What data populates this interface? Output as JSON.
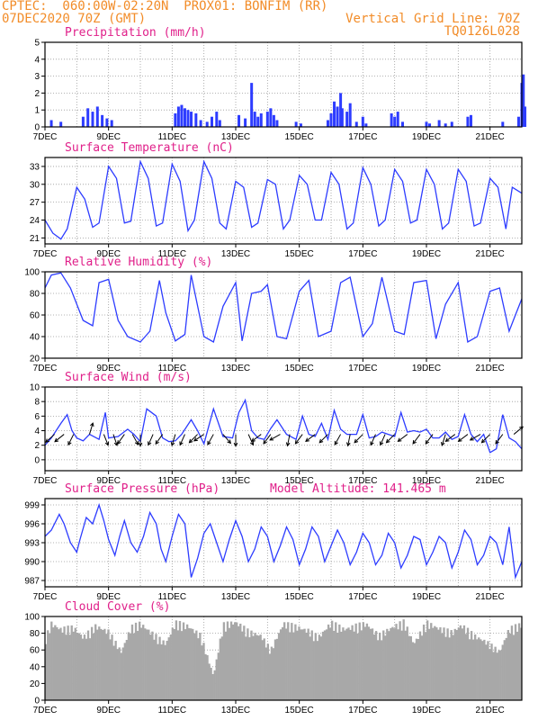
{
  "header": {
    "line1_left": "CPTEC:  060:00W-02:20N  PROX01: BONFIM (RR)",
    "line2_left": "07DEC2020 70Z (GMT)",
    "line2_right": "Vertical Grid Line: 70Z",
    "line3_right": "TQ0126L028"
  },
  "colors": {
    "header": "#f28c28",
    "title": "#e0208a",
    "line": "#2d3cff",
    "bar": "#2d3cff",
    "cloud": "#a8a8a8",
    "arrow": "#000000"
  },
  "x_labels": [
    "7DEC",
    "9DEC",
    "11DEC",
    "13DEC",
    "15DEC",
    "17DEC",
    "19DEC",
    "21DEC"
  ],
  "chart_data": [
    {
      "type": "bar",
      "title": "Precipitation (mm/h)",
      "ylim": [
        0,
        5
      ],
      "yticks": [
        0,
        1,
        2,
        3,
        4,
        5
      ],
      "x": [
        0.2,
        0.5,
        1.2,
        1.35,
        1.5,
        1.65,
        1.8,
        1.95,
        2.1,
        4.1,
        4.2,
        4.3,
        4.4,
        4.5,
        4.6,
        4.75,
        4.9,
        5.1,
        5.25,
        5.4,
        5.5,
        6.1,
        6.3,
        6.5,
        6.6,
        6.7,
        6.8,
        7.0,
        7.1,
        7.2,
        7.3,
        7.9,
        8.05,
        8.9,
        9.0,
        9.1,
        9.2,
        9.3,
        9.35,
        9.5,
        9.6,
        9.8,
        10.0,
        10.1,
        10.9,
        11.0,
        11.1,
        11.25,
        12.0,
        12.1,
        12.4,
        12.6,
        12.8,
        13.3,
        13.4,
        14.4,
        14.9,
        15.0,
        15.05,
        15.1
      ],
      "values": [
        0.4,
        0.3,
        0.6,
        1.1,
        0.9,
        1.2,
        0.7,
        0.5,
        0.4,
        0.8,
        1.2,
        1.3,
        1.1,
        1.0,
        0.9,
        0.8,
        0.4,
        0.3,
        0.6,
        0.9,
        0.4,
        0.7,
        0.5,
        2.6,
        0.9,
        0.6,
        0.8,
        0.9,
        1.1,
        0.7,
        0.4,
        0.3,
        0.2,
        0.4,
        0.8,
        1.5,
        1.2,
        2.0,
        1.1,
        0.9,
        1.4,
        0.3,
        0.6,
        0.2,
        0.8,
        0.6,
        0.9,
        0.3,
        0.3,
        0.2,
        0.4,
        0.2,
        0.3,
        0.6,
        0.7,
        0.3,
        0.6,
        2.6,
        3.1,
        1.2
      ]
    },
    {
      "type": "line",
      "title": "Surface Temperature (nC)",
      "ylim": [
        20,
        34.5
      ],
      "yticks": [
        21,
        24,
        27,
        30,
        33
      ],
      "x": [
        0,
        0.25,
        0.5,
        0.7,
        1.0,
        1.25,
        1.5,
        1.7,
        2.0,
        2.25,
        2.5,
        2.7,
        3.0,
        3.25,
        3.5,
        3.7,
        4.0,
        4.25,
        4.5,
        4.7,
        5.0,
        5.25,
        5.5,
        5.7,
        6.0,
        6.25,
        6.5,
        6.7,
        7.0,
        7.25,
        7.5,
        7.7,
        8.0,
        8.25,
        8.5,
        8.7,
        9.0,
        9.25,
        9.5,
        9.7,
        10.0,
        10.25,
        10.5,
        10.7,
        11.0,
        11.25,
        11.5,
        11.7,
        12.0,
        12.25,
        12.5,
        12.7,
        13.0,
        13.25,
        13.5,
        13.7,
        14.0,
        14.25,
        14.5,
        14.7,
        15.0
      ],
      "values": [
        24,
        21.8,
        20.8,
        22.5,
        29.5,
        27.5,
        22.8,
        23.5,
        33,
        31,
        23.5,
        23.8,
        33.8,
        31,
        23,
        23.5,
        33.4,
        30.5,
        22.2,
        24,
        33.8,
        31,
        23.5,
        22.5,
        30.5,
        29.5,
        22.8,
        23.5,
        30.8,
        30,
        22.5,
        24,
        31.5,
        30,
        24,
        24,
        32,
        30,
        22.5,
        23.5,
        32.8,
        30,
        23,
        24,
        32.5,
        30.5,
        23.5,
        24,
        32.5,
        30,
        22.5,
        23.5,
        32.5,
        30.5,
        23,
        23.5,
        31,
        29.5,
        22.5,
        29.5,
        28.5
      ]
    },
    {
      "type": "line",
      "title": "Relative Humidity (%)",
      "ylim": [
        20,
        100
      ],
      "yticks": [
        20,
        40,
        60,
        80,
        100
      ],
      "x": [
        0,
        0.2,
        0.5,
        0.8,
        1.2,
        1.5,
        1.7,
        2.0,
        2.3,
        2.6,
        3.0,
        3.3,
        3.6,
        3.8,
        4.1,
        4.4,
        4.6,
        5.0,
        5.3,
        5.6,
        6.0,
        6.2,
        6.5,
        6.8,
        7.0,
        7.3,
        7.6,
        8.0,
        8.3,
        8.6,
        9.0,
        9.3,
        9.6,
        10.0,
        10.3,
        10.6,
        11.0,
        11.3,
        11.6,
        12.0,
        12.3,
        12.6,
        13.0,
        13.3,
        13.6,
        14.0,
        14.3,
        14.6,
        14.8,
        15.0
      ],
      "values": [
        85,
        97,
        99,
        85,
        55,
        50,
        90,
        93,
        55,
        40,
        35,
        45,
        92,
        62,
        36,
        42,
        97,
        40,
        35,
        68,
        90,
        36,
        80,
        82,
        88,
        40,
        38,
        82,
        92,
        40,
        45,
        90,
        95,
        40,
        52,
        95,
        45,
        42,
        90,
        92,
        38,
        70,
        90,
        35,
        40,
        82,
        85,
        45,
        60,
        75
      ]
    },
    {
      "type": "line",
      "title": "Surface Wind (m/s)",
      "ylim": [
        -1.5,
        10
      ],
      "yticks": [
        0,
        2,
        4,
        6,
        8,
        10
      ],
      "x": [
        0,
        0.2,
        0.5,
        0.7,
        0.85,
        1.0,
        1.2,
        1.4,
        1.7,
        1.9,
        2.0,
        2.3,
        2.6,
        2.8,
        3.0,
        3.2,
        3.5,
        3.7,
        3.9,
        4.1,
        4.3,
        4.6,
        4.8,
        5.0,
        5.3,
        5.6,
        5.9,
        6.1,
        6.3,
        6.5,
        6.7,
        6.9,
        7.1,
        7.3,
        7.6,
        7.9,
        8.1,
        8.3,
        8.5,
        8.7,
        8.9,
        9.1,
        9.3,
        9.5,
        9.8,
        10.0,
        10.2,
        10.4,
        10.6,
        10.8,
        11.0,
        11.2,
        11.4,
        11.6,
        11.8,
        12.0,
        12.2,
        12.4,
        12.6,
        12.8,
        13.0,
        13.2,
        13.4,
        13.6,
        13.8,
        14.0,
        14.2,
        14.4,
        14.6,
        14.8,
        15.0
      ],
      "values": [
        2,
        3,
        5,
        6.2,
        4,
        3,
        2.6,
        3.5,
        2.8,
        6.5,
        3,
        3.2,
        4.2,
        3.5,
        2.5,
        7,
        6,
        3,
        2.5,
        2.6,
        3.5,
        5.5,
        4,
        2.2,
        7,
        3.2,
        3,
        6.5,
        8.2,
        4,
        3,
        2.8,
        4.3,
        5.5,
        3.5,
        2.8,
        6,
        3.5,
        3.2,
        5,
        2.8,
        6.8,
        4.2,
        3.5,
        3.5,
        6.2,
        3,
        3.2,
        3.8,
        3.5,
        3.2,
        6.5,
        3.8,
        4,
        3.8,
        4.2,
        3,
        3,
        3.8,
        2.8,
        3.2,
        6.2,
        3.5,
        2.5,
        3.5,
        1,
        1.5,
        6.2,
        3,
        2.5,
        1.5
      ],
      "arrows": {
        "x": [
          0.3,
          0.6,
          0.9,
          1.4,
          1.85,
          2.15,
          2.5,
          2.75,
          3.0,
          3.4,
          3.7,
          4.1,
          4.4,
          4.8,
          5.0,
          5.3,
          5.6,
          6.0,
          6.4,
          6.8,
          7.1,
          7.4,
          7.7,
          8.1,
          8.5,
          8.9,
          9.3,
          9.6,
          10.0,
          10.4,
          10.7,
          11.0,
          11.4,
          11.8,
          12.2,
          12.6,
          12.9,
          13.3,
          13.7,
          14.0,
          14.4,
          14.75
        ],
        "u": [
          -1,
          -1,
          -0.5,
          0.3,
          0.4,
          0.3,
          -0.5,
          0.5,
          0,
          -0.4,
          -0.5,
          -0.3,
          -0.4,
          -0.7,
          -0.9,
          -0.5,
          0.6,
          0,
          0.4,
          -0.8,
          -0.6,
          -0.9,
          -0.2,
          -0.6,
          -0.8,
          -0.7,
          -0.5,
          -0.2,
          -0.7,
          -0.4,
          -0.4,
          -0.7,
          -0.8,
          -0.6,
          -0.6,
          -0.3,
          -0.8,
          -0.8,
          -0.9,
          -0.7,
          -0.6,
          0.6
        ],
        "v": [
          -0.9,
          -0.8,
          -1.0,
          1.0,
          -1.0,
          -0.9,
          -0.7,
          -0.9,
          -1.0,
          -0.9,
          -0.7,
          -1.0,
          -0.9,
          -0.7,
          -0.6,
          -0.9,
          -0.7,
          -1.0,
          -0.9,
          -0.6,
          -0.8,
          -0.5,
          -1.0,
          -0.8,
          -0.6,
          -0.7,
          -0.9,
          -1.0,
          -0.7,
          -0.9,
          -0.9,
          -0.7,
          -0.6,
          -0.8,
          -0.8,
          -0.95,
          -0.6,
          -0.6,
          -0.5,
          -0.7,
          -0.8,
          0.5
        ]
      }
    },
    {
      "type": "line",
      "title": "Surface Pressure (hPa)",
      "subtitle": "Model Altitude: 141.465 m",
      "ylim": [
        986,
        1000
      ],
      "yticks": [
        987,
        990,
        993,
        996,
        999
      ],
      "x": [
        0,
        0.2,
        0.45,
        0.6,
        0.8,
        1.0,
        1.1,
        1.3,
        1.5,
        1.7,
        1.85,
        2.0,
        2.2,
        2.35,
        2.5,
        2.7,
        2.9,
        3.1,
        3.3,
        3.5,
        3.65,
        3.8,
        4.0,
        4.2,
        4.4,
        4.6,
        4.8,
        5.0,
        5.2,
        5.4,
        5.6,
        5.8,
        6.0,
        6.2,
        6.4,
        6.6,
        6.8,
        7.0,
        7.2,
        7.4,
        7.6,
        7.8,
        8.0,
        8.2,
        8.4,
        8.6,
        8.8,
        9.0,
        9.2,
        9.4,
        9.6,
        9.8,
        10.0,
        10.2,
        10.4,
        10.6,
        10.8,
        11.0,
        11.2,
        11.4,
        11.6,
        11.8,
        12.0,
        12.2,
        12.4,
        12.6,
        12.8,
        13.0,
        13.2,
        13.4,
        13.6,
        13.8,
        14.0,
        14.2,
        14.4,
        14.6,
        14.8,
        15.0
      ],
      "values": [
        994,
        995,
        997.5,
        996,
        993,
        991.5,
        993.5,
        997,
        996,
        999,
        996.5,
        993.5,
        991,
        994,
        996.5,
        993,
        991.5,
        994,
        997.8,
        996,
        992,
        990,
        994,
        997.5,
        996,
        987.5,
        990.5,
        994.5,
        996,
        993,
        990,
        993.5,
        996.5,
        994,
        990,
        992,
        995.5,
        994,
        990,
        992.5,
        995.5,
        993.5,
        989.5,
        992,
        995.5,
        994,
        990,
        992.5,
        995,
        993,
        989.5,
        991.5,
        994.5,
        993,
        989.5,
        991,
        994.5,
        993,
        989,
        991,
        994,
        993.5,
        989.5,
        991.5,
        994,
        993,
        989,
        991.5,
        995,
        993.5,
        989.5,
        991,
        994,
        993,
        989.5,
        995.5,
        987.5,
        990
      ]
    },
    {
      "type": "area",
      "title": "Cloud Cover (%)",
      "ylim": [
        0,
        100
      ],
      "yticks": [
        0,
        20,
        40,
        60,
        80,
        100
      ],
      "x": [
        0,
        0.2,
        0.5,
        0.9,
        1.2,
        1.6,
        2.0,
        2.4,
        2.7,
        3.0,
        3.4,
        3.8,
        4.1,
        4.5,
        4.9,
        5.3,
        5.6,
        6.0,
        6.4,
        6.8,
        7.1,
        7.5,
        7.9,
        8.3,
        8.6,
        9.0,
        9.4,
        9.8,
        10.1,
        10.5,
        10.9,
        11.3,
        11.6,
        12.0,
        12.4,
        12.8,
        13.1,
        13.5,
        13.9,
        14.3,
        14.6,
        15.0
      ],
      "values": [
        75,
        95,
        88,
        90,
        78,
        92,
        85,
        60,
        90,
        95,
        82,
        70,
        96,
        92,
        80,
        30,
        93,
        97,
        85,
        80,
        62,
        95,
        91,
        86,
        78,
        96,
        88,
        92,
        95,
        80,
        90,
        97,
        70,
        96,
        89,
        84,
        93,
        80,
        72,
        60,
        88,
        94
      ]
    }
  ]
}
